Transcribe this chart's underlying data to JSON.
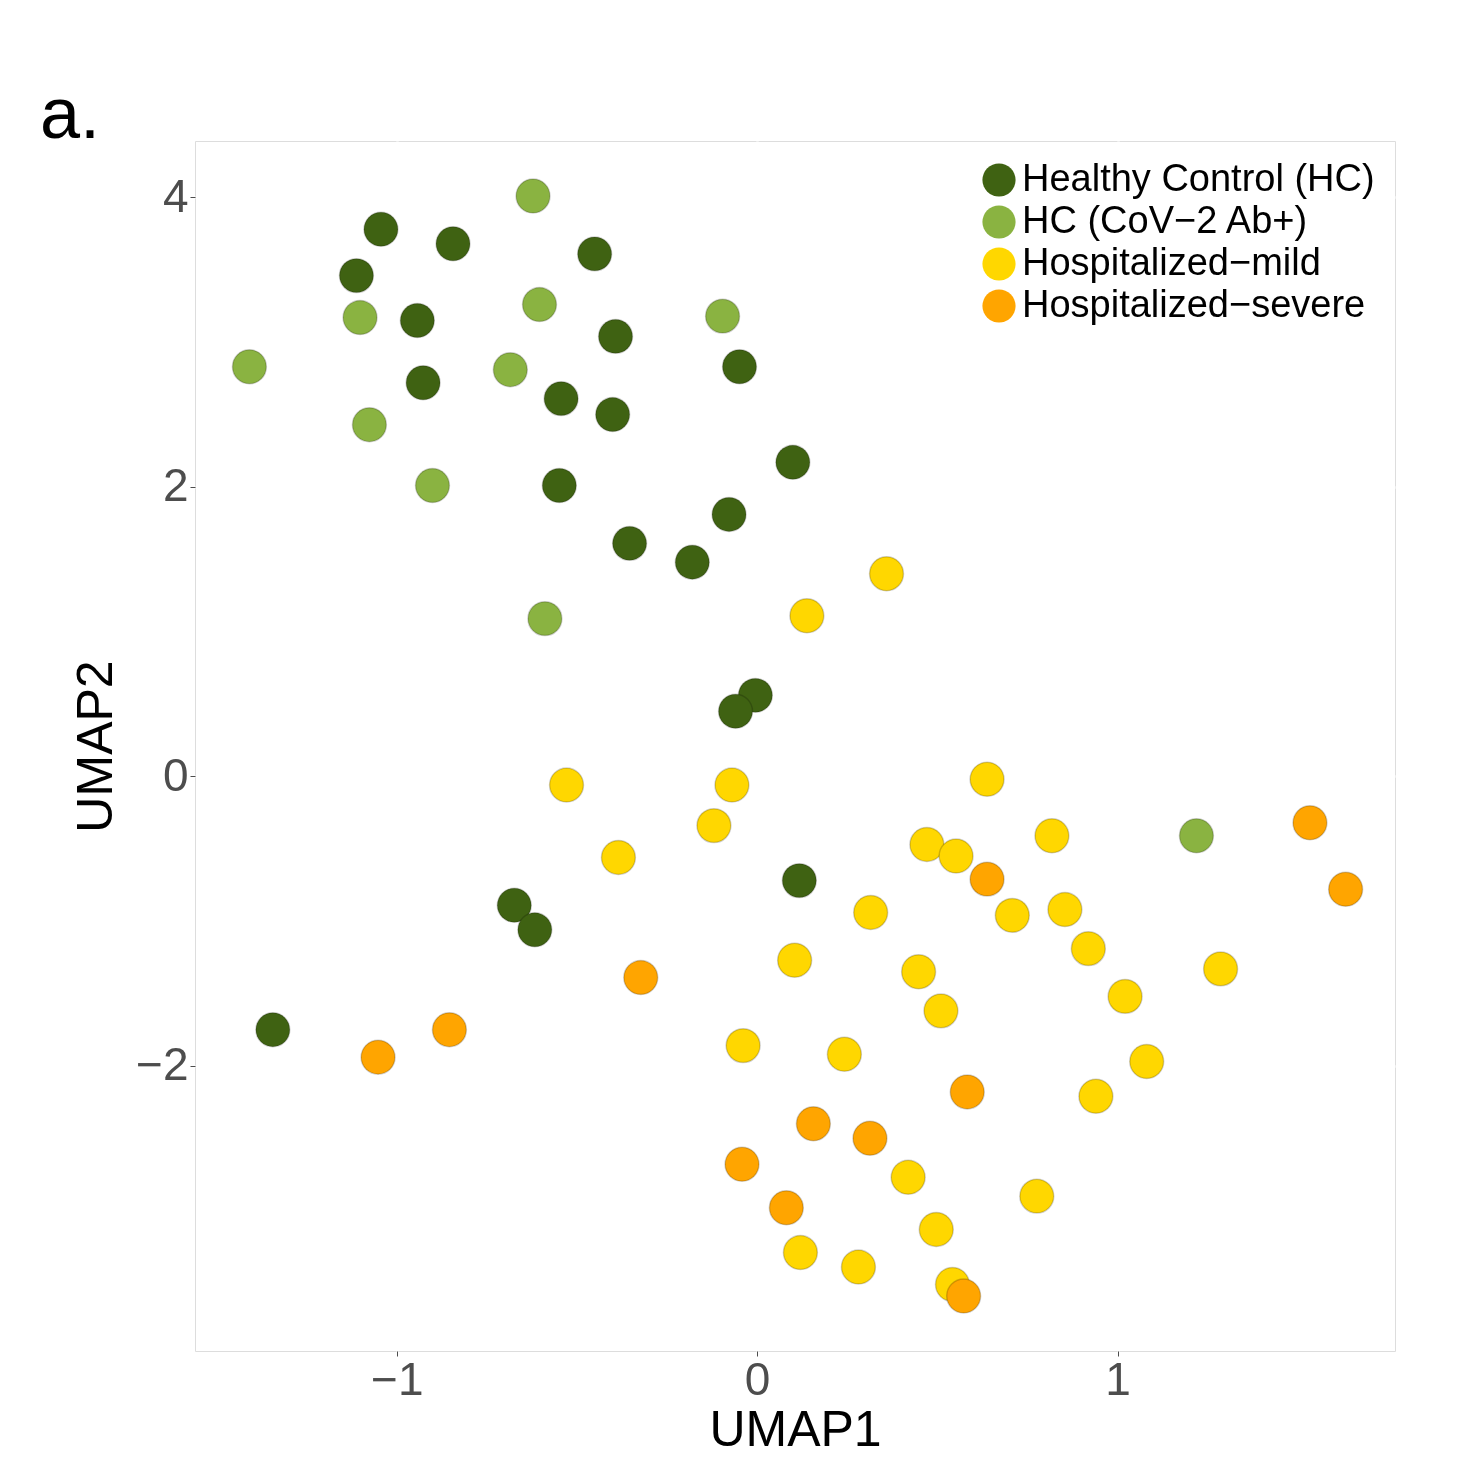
{
  "chart_data": {
    "type": "scatter",
    "xlabel": "UMAP1",
    "ylabel": "UMAP2",
    "xlim": [
      -1.56,
      1.77
    ],
    "ylim": [
      -3.97,
      4.39
    ],
    "xticks": [
      -1,
      0,
      1
    ],
    "yticks": [
      -2,
      0,
      2,
      4
    ],
    "grid": true,
    "legend": "top right",
    "marker": "circle",
    "annotations": [
      "a."
    ],
    "series": [
      {
        "name": "Healthy Control (HC)",
        "color": "#3f6212",
        "x": [
          -1.044,
          -0.844,
          -1.112,
          -0.451,
          -0.943,
          -0.393,
          -0.049,
          -0.927,
          -0.544,
          -0.401,
          0.099,
          -0.549,
          -0.078,
          -0.354,
          -0.18,
          -0.005,
          -0.06,
          0.117,
          -0.674,
          -0.617,
          -1.344
        ],
        "values": [
          3.78,
          3.68,
          3.46,
          3.61,
          3.15,
          3.04,
          2.83,
          2.72,
          2.61,
          2.5,
          2.17,
          2.01,
          1.81,
          1.61,
          1.48,
          0.56,
          0.45,
          -0.72,
          -0.89,
          -1.06,
          -1.75
        ]
      },
      {
        "name": "HC (CoV−2 Ab+)",
        "color": "#8ab341",
        "x": [
          -0.622,
          -0.604,
          -1.102,
          -0.096,
          -1.409,
          -0.685,
          -1.076,
          -0.901,
          -0.589,
          1.219
        ],
        "values": [
          4.01,
          3.26,
          3.17,
          3.18,
          2.83,
          2.81,
          2.43,
          2.01,
          1.09,
          -0.41
        ]
      },
      {
        "name": "Hospitalized−mild",
        "color": "#ffd700",
        "x": [
          0.359,
          0.138,
          -0.529,
          -0.07,
          0.638,
          -0.12,
          -0.385,
          0.471,
          0.552,
          0.818,
          0.315,
          0.708,
          0.854,
          0.919,
          0.104,
          0.448,
          1.286,
          1.021,
          0.51,
          -0.039,
          0.242,
          1.081,
          0.94,
          0.419,
          0.776,
          0.497,
          0.12,
          0.281,
          0.542
        ],
        "values": [
          1.4,
          1.11,
          -0.06,
          -0.06,
          -0.02,
          -0.34,
          -0.56,
          -0.47,
          -0.55,
          -0.41,
          -0.94,
          -0.96,
          -0.92,
          -1.19,
          -1.27,
          -1.35,
          -1.33,
          -1.52,
          -1.62,
          -1.86,
          -1.92,
          -1.97,
          -2.21,
          -2.77,
          -2.9,
          -3.13,
          -3.29,
          -3.39,
          -3.51
        ]
      },
      {
        "name": "Hospitalized−severe",
        "color": "#ffa500",
        "x": [
          1.534,
          1.633,
          0.638,
          -0.323,
          -0.854,
          -1.052,
          0.583,
          0.156,
          0.313,
          -0.042,
          0.081,
          0.573
        ],
        "values": [
          -0.32,
          -0.78,
          -0.71,
          -1.39,
          -1.75,
          -1.94,
          -2.18,
          -2.4,
          -2.5,
          -2.68,
          -2.98,
          -3.59
        ]
      }
    ]
  }
}
